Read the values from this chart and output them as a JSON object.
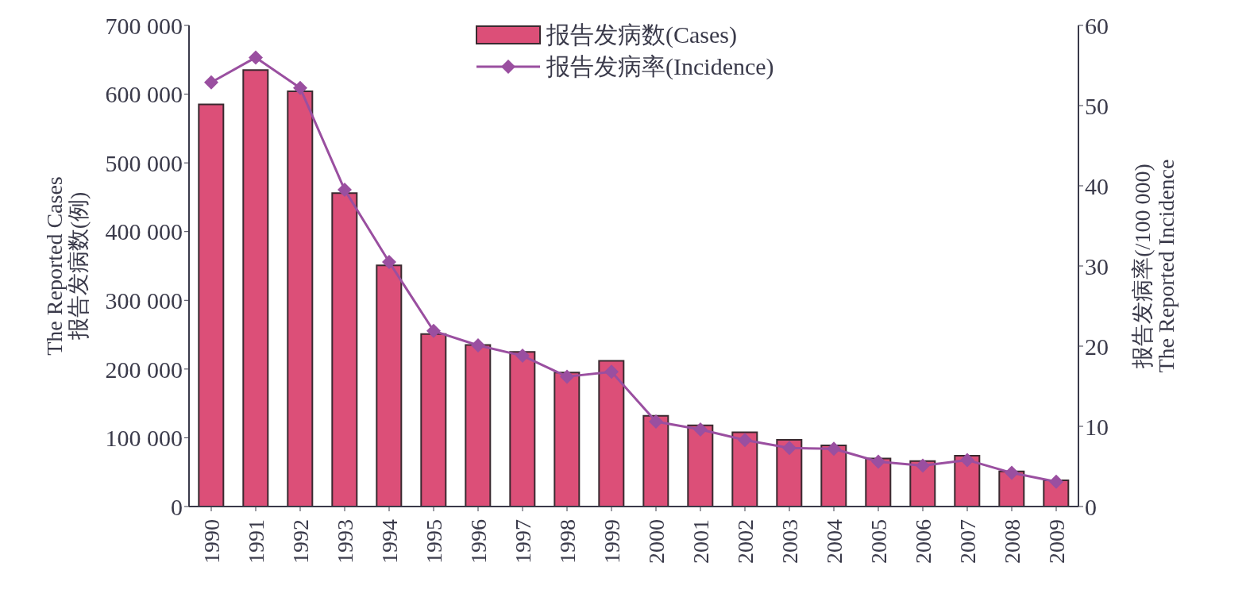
{
  "chart_data": {
    "type": "bar",
    "categories": [
      "1990",
      "1991",
      "1992",
      "1993",
      "1994",
      "1995",
      "1996",
      "1997",
      "1998",
      "1999",
      "2000",
      "2001",
      "2002",
      "2003",
      "2004",
      "2005",
      "2006",
      "2007",
      "2008",
      "2009"
    ],
    "series": [
      {
        "name": "报告发病数(Cases)",
        "color": "#dc4f78",
        "values": [
          585000,
          635000,
          604000,
          456000,
          351000,
          251000,
          235000,
          225000,
          195000,
          212000,
          132000,
          118000,
          108000,
          97000,
          89000,
          70000,
          66000,
          74000,
          51000,
          38000
        ]
      },
      {
        "name": "报告发病率(Incidence)",
        "type": "line",
        "axis": "y2",
        "color": "#9a4fa0",
        "values": [
          52.9,
          56.0,
          52.2,
          39.5,
          30.5,
          21.9,
          20.1,
          18.8,
          16.2,
          16.8,
          10.6,
          9.6,
          8.3,
          7.3,
          7.2,
          5.6,
          5.1,
          5.8,
          4.2,
          3.1
        ]
      }
    ],
    "ylabel": "The Reported Cases\n报告发病数(例)",
    "y2label": "报告发病率(/100 000)\nThe Reported Incidence",
    "ylim": [
      0,
      700000
    ],
    "yticks": [
      {
        "value": 0,
        "label": "0"
      },
      {
        "value": 100000,
        "label": "100 000"
      },
      {
        "value": 200000,
        "label": "200 000"
      },
      {
        "value": 300000,
        "label": "300 000"
      },
      {
        "value": 400000,
        "label": "400 000"
      },
      {
        "value": 500000,
        "label": "500 000"
      },
      {
        "value": 600000,
        "label": "600 000"
      },
      {
        "value": 700000,
        "label": "700 000"
      }
    ],
    "y2lim": [
      0,
      60
    ],
    "y2ticks": [
      0,
      10,
      20,
      30,
      40,
      50,
      60
    ],
    "legend": "top",
    "marker": "diamond",
    "grid": false
  }
}
